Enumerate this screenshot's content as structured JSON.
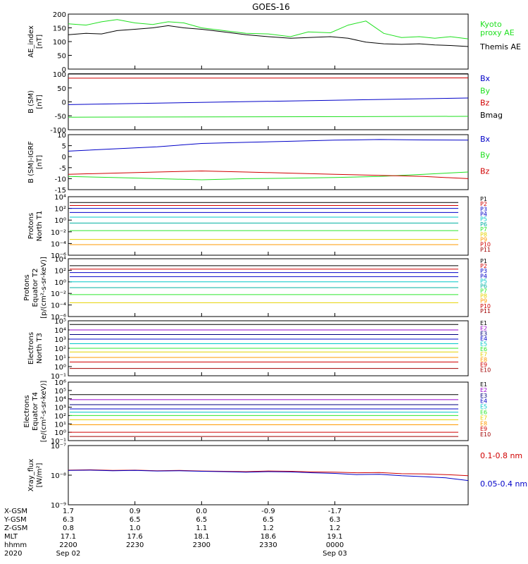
{
  "title": "GOES-16",
  "colors": {
    "black": "#000000",
    "blue": "#0000c8",
    "green": "#1fe01f",
    "red": "#d00000",
    "cyan": "#00c8c8",
    "yellow": "#e6d200",
    "orange": "#ff9a00",
    "navy": "#000080",
    "purple": "#9900cc",
    "lime": "#2ee82e",
    "teal": "#00b0a0",
    "olive": "#a0a000",
    "darkred": "#a00000"
  },
  "chart_data": [
    {
      "type": "line",
      "id": "ae",
      "ylabel": [
        "AE_index",
        "[nT]"
      ],
      "ylim": [
        0,
        200
      ],
      "yscale": "linear",
      "yticks": [
        0,
        50,
        100,
        150,
        200
      ],
      "series": [
        {
          "name": "Kyoto proxy AE",
          "label_lines": [
            "Kyoto",
            "proxy AE"
          ],
          "color": "#1fe01f",
          "x": [
            0,
            8,
            15,
            22,
            30,
            38,
            45,
            52,
            60,
            70,
            80,
            90,
            100,
            108,
            118,
            126,
            134,
            142,
            150,
            158,
            165,
            172,
            180
          ],
          "y": [
            165,
            160,
            172,
            180,
            168,
            162,
            172,
            168,
            150,
            140,
            130,
            128,
            118,
            135,
            132,
            160,
            175,
            130,
            115,
            118,
            112,
            118,
            110
          ]
        },
        {
          "name": "Themis AE",
          "label_lines": [
            "Themis AE"
          ],
          "color": "#000000",
          "x": [
            0,
            8,
            15,
            22,
            30,
            38,
            45,
            52,
            60,
            70,
            80,
            90,
            100,
            108,
            118,
            126,
            134,
            142,
            150,
            158,
            165,
            172,
            180
          ],
          "y": [
            125,
            130,
            128,
            140,
            145,
            150,
            158,
            150,
            145,
            135,
            125,
            118,
            112,
            115,
            118,
            112,
            98,
            92,
            90,
            92,
            88,
            86,
            82
          ]
        }
      ]
    },
    {
      "type": "line",
      "id": "b",
      "ylabel": [
        "B (SM)",
        "[nT]"
      ],
      "ylim": [
        -100,
        100
      ],
      "yscale": "linear",
      "yticks": [
        -100,
        -50,
        0,
        50,
        100
      ],
      "series": [
        {
          "name": "Bx",
          "color": "#0000c8",
          "x": [
            0,
            180
          ],
          "y": [
            -10,
            14
          ]
        },
        {
          "name": "By",
          "color": "#1fe01f",
          "x": [
            0,
            180
          ],
          "y": [
            -55,
            -52
          ]
        },
        {
          "name": "Bz",
          "color": "#d00000",
          "x": [
            0,
            180
          ],
          "y": [
            85,
            86
          ]
        },
        {
          "name": "Bmag",
          "color": "#000000",
          "x": [
            0,
            180
          ],
          "y": [
            101,
            101
          ]
        }
      ]
    },
    {
      "type": "line",
      "id": "bigrf",
      "ylabel": [
        "B (SM)-IGRF",
        "[nT]"
      ],
      "ylim": [
        -15,
        10
      ],
      "yscale": "linear",
      "yticks": [
        -15,
        -10,
        -5,
        0,
        5,
        10
      ],
      "series": [
        {
          "name": "Bx",
          "color": "#0000c8",
          "x": [
            0,
            20,
            40,
            60,
            80,
            100,
            120,
            140,
            160,
            180
          ],
          "y": [
            2.5,
            3.5,
            4.5,
            6,
            6.5,
            7,
            7.5,
            7.8,
            7.6,
            7.5
          ]
        },
        {
          "name": "By",
          "color": "#1fe01f",
          "x": [
            0,
            20,
            40,
            60,
            80,
            100,
            120,
            140,
            160,
            180
          ],
          "y": [
            -9,
            -9.5,
            -10,
            -10.5,
            -10,
            -9.8,
            -9.5,
            -9,
            -8,
            -7
          ]
        },
        {
          "name": "Bz",
          "color": "#d00000",
          "x": [
            0,
            20,
            40,
            60,
            80,
            100,
            120,
            140,
            160,
            180
          ],
          "y": [
            -8,
            -7.5,
            -7,
            -6.5,
            -7,
            -7.5,
            -8,
            -8.5,
            -9,
            -10
          ]
        }
      ]
    },
    {
      "type": "line",
      "id": "protons_t1",
      "ylabel": [
        "Protons",
        "North T1"
      ],
      "yscale": "log",
      "ylim": [
        -6,
        4
      ],
      "yticks": [
        -6,
        -4,
        -2,
        0,
        2,
        4
      ],
      "ytick_labels": [
        "10⁻⁶",
        "10⁻⁴",
        "10⁻²",
        "10⁰",
        "10²",
        "10⁴"
      ],
      "series": [
        {
          "name": "P1",
          "color": "#000000",
          "log10": 3.0
        },
        {
          "name": "P2",
          "color": "#d00000",
          "log10": 2.5
        },
        {
          "name": "P3",
          "color": "#0000c8",
          "log10": 2.0
        },
        {
          "name": "P4",
          "color": "#0000c8",
          "log10": 1.3
        },
        {
          "name": "P5",
          "color": "#00c8c8",
          "log10": 0.5
        },
        {
          "name": "P6",
          "color": "#00b0a0",
          "log10": -0.5
        },
        {
          "name": "P7",
          "color": "#2ee82e",
          "log10": -1.8
        },
        {
          "name": "P8",
          "color": "#e6d200",
          "log10": -3.3
        },
        {
          "name": "P9",
          "color": "#ff9a00",
          "log10": -4.2
        },
        {
          "name": "P10",
          "color": "#d00000",
          "log10": null
        },
        {
          "name": "P11",
          "color": "#a00000",
          "log10": null
        }
      ]
    },
    {
      "type": "line",
      "id": "protons_t2",
      "ylabel": [
        "Protons",
        "Equator T2",
        "[p/(cm²-s-sr-keV)]"
      ],
      "yscale": "log",
      "ylim": [
        -6,
        4
      ],
      "yticks": [
        -6,
        -4,
        -2,
        0,
        2,
        4
      ],
      "ytick_labels": [
        "10⁻⁶",
        "10⁻⁴",
        "10⁻²",
        "10⁰",
        "10²",
        "10⁴"
      ],
      "series": [
        {
          "name": "P1",
          "color": "#000000",
          "log10": 2.8
        },
        {
          "name": "P2",
          "color": "#d00000",
          "log10": 2.2
        },
        {
          "name": "P3",
          "color": "#0000c8",
          "log10": 1.6
        },
        {
          "name": "P4",
          "color": "#0000c8",
          "log10": 0.9
        },
        {
          "name": "P5",
          "color": "#00c8c8",
          "log10": 0.0
        },
        {
          "name": "P6",
          "color": "#00b0a0",
          "log10": -1.0
        },
        {
          "name": "P7",
          "color": "#2ee82e",
          "log10": -2.2
        },
        {
          "name": "P8",
          "color": "#e6d200",
          "log10": -3.6
        },
        {
          "name": "P9",
          "color": "#ff9a00",
          "log10": null
        },
        {
          "name": "P10",
          "color": "#d00000",
          "log10": null
        },
        {
          "name": "P11",
          "color": "#a00000",
          "log10": null
        }
      ]
    },
    {
      "type": "line",
      "id": "electrons_t3",
      "ylabel": [
        "Electrons",
        "North T3"
      ],
      "yscale": "log",
      "ylim": [
        -1,
        5
      ],
      "yticks": [
        -1,
        0,
        1,
        2,
        3,
        4,
        5
      ],
      "ytick_labels": [
        "10⁻¹",
        "10⁰",
        "10¹",
        "10²",
        "10³",
        "10⁴",
        "10⁵"
      ],
      "series": [
        {
          "name": "E1",
          "color": "#000000",
          "log10": 4.6
        },
        {
          "name": "E2",
          "color": "#9900cc",
          "log10": 4.0
        },
        {
          "name": "E3",
          "color": "#000080",
          "log10": 3.5
        },
        {
          "name": "E4",
          "color": "#0000c8",
          "log10": 3.0
        },
        {
          "name": "E5",
          "color": "#00c8c8",
          "log10": 2.5
        },
        {
          "name": "E6",
          "color": "#2ee82e",
          "log10": 2.0
        },
        {
          "name": "E7",
          "color": "#e6d200",
          "log10": 1.6
        },
        {
          "name": "E8",
          "color": "#ff9a00",
          "log10": 1.0
        },
        {
          "name": "E9",
          "color": "#d00000",
          "log10": 0.5
        },
        {
          "name": "E10",
          "color": "#a00000",
          "log10": -0.2
        }
      ]
    },
    {
      "type": "line",
      "id": "electrons_t4",
      "ylabel": [
        "Electrons",
        "Equator T4",
        "[e/(cm²-s-sr-keV)]"
      ],
      "yscale": "log",
      "ylim": [
        -1,
        6
      ],
      "yticks": [
        -1,
        0,
        1,
        2,
        3,
        4,
        5,
        6
      ],
      "ytick_labels": [
        "10⁻¹",
        "10⁰",
        "10¹",
        "10²",
        "10³",
        "10⁴",
        "10⁵",
        "10⁶"
      ],
      "series": [
        {
          "name": "E1",
          "color": "#000000",
          "log10": 4.5
        },
        {
          "name": "E2",
          "color": "#9900cc",
          "log10": 3.9
        },
        {
          "name": "E3",
          "color": "#000080",
          "log10": 3.3
        },
        {
          "name": "E4",
          "color": "#0000c8",
          "log10": 2.8
        },
        {
          "name": "E5",
          "color": "#00c8c8",
          "log10": 2.4
        },
        {
          "name": "E6",
          "color": "#2ee82e",
          "log10": 2.0
        },
        {
          "name": "E7",
          "color": "#e6d200",
          "log10": 1.5
        },
        {
          "name": "E8",
          "color": "#ff9a00",
          "log10": 0.9
        },
        {
          "name": "E9",
          "color": "#d00000",
          "log10": 0.0
        },
        {
          "name": "E10",
          "color": "#a00000",
          "log10": -0.5
        }
      ]
    },
    {
      "type": "line",
      "id": "xray",
      "ylabel": [
        "Xray_flux",
        "[W/m²]"
      ],
      "yscale": "log",
      "ylim": [
        -9,
        -7
      ],
      "yticks": [
        -9,
        -8,
        -7
      ],
      "ytick_labels": [
        "10⁻⁹",
        "10⁻⁸",
        "10⁻⁷"
      ],
      "series": [
        {
          "name": "0.1-0.8 nm",
          "color": "#d00000",
          "x": [
            0,
            10,
            20,
            30,
            40,
            50,
            60,
            70,
            80,
            90,
            100,
            110,
            120,
            130,
            140,
            150,
            160,
            170,
            180
          ],
          "y": [
            -7.83,
            -7.82,
            -7.84,
            -7.83,
            -7.85,
            -7.84,
            -7.86,
            -7.87,
            -7.88,
            -7.86,
            -7.87,
            -7.89,
            -7.9,
            -7.92,
            -7.91,
            -7.95,
            -7.96,
            -7.98,
            -8.02
          ]
        },
        {
          "name": "0.05-0.4 nm",
          "color": "#0000c8",
          "x": [
            0,
            10,
            20,
            30,
            40,
            50,
            60,
            70,
            80,
            90,
            100,
            110,
            120,
            130,
            140,
            150,
            160,
            170,
            180
          ],
          "y": [
            -7.84,
            -7.83,
            -7.85,
            -7.84,
            -7.86,
            -7.85,
            -7.87,
            -7.88,
            -7.9,
            -7.88,
            -7.89,
            -7.92,
            -7.94,
            -7.98,
            -7.97,
            -8.02,
            -8.05,
            -8.09,
            -8.18
          ]
        }
      ]
    }
  ],
  "xaxis": {
    "row_labels": [
      "X-GSM",
      "Y-GSM",
      "Z-GSM",
      "MLT",
      "hhmm",
      "2020"
    ],
    "columns": [
      {
        "values": [
          "1.7",
          "6.3",
          "0.8",
          "17.1",
          "2200",
          "Sep 02"
        ]
      },
      {
        "values": [
          "0.9",
          "6.5",
          "1.0",
          "17.6",
          "2230",
          ""
        ]
      },
      {
        "values": [
          "0.0",
          "6.5",
          "1.1",
          "18.1",
          "2300",
          ""
        ]
      },
      {
        "values": [
          "-0.9",
          "6.5",
          "1.2",
          "18.6",
          "2330",
          ""
        ]
      },
      {
        "values": [
          "-1.7",
          "6.3",
          "1.2",
          "19.1",
          "0000",
          "Sep 03"
        ]
      }
    ],
    "minutes": [
      0,
      30,
      60,
      90,
      120
    ]
  }
}
